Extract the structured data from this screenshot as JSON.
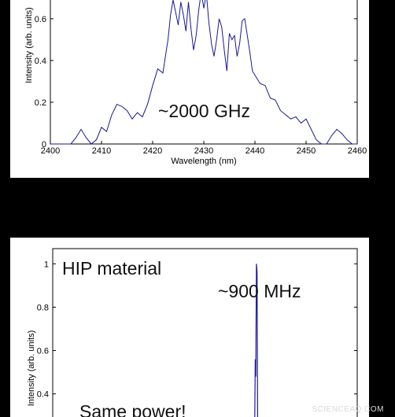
{
  "chart_data": [
    {
      "type": "line",
      "xlabel": "Wavelength (nm)",
      "ylabel": "Intensity (arb. units)",
      "xlim": [
        2400,
        2460
      ],
      "ylim": [
        0,
        0.72
      ],
      "xticks": [
        "2400",
        "2410",
        "2420",
        "2430",
        "2440",
        "2450",
        "2460"
      ],
      "yticks": [
        "0",
        "0.2",
        "0.4",
        "0.6"
      ],
      "annotation": "~2000 GHz",
      "series": [
        {
          "color": "#1a1a8c",
          "x": [
            2400,
            2404,
            2405,
            2406,
            2407,
            2408,
            2409,
            2410,
            2411,
            2412,
            2413,
            2414,
            2415,
            2416,
            2417,
            2418,
            2419,
            2420,
            2421,
            2422,
            2423,
            2423.5,
            2424,
            2424.5,
            2425,
            2425.5,
            2426,
            2426.5,
            2427,
            2427.5,
            2428,
            2428.5,
            2429,
            2429.5,
            2430,
            2430.5,
            2431,
            2431.5,
            2432,
            2432.5,
            2433,
            2433.5,
            2434,
            2434.5,
            2435,
            2435.5,
            2436,
            2436.5,
            2437,
            2437.5,
            2438,
            2438.5,
            2439,
            2439.5,
            2440,
            2441,
            2442,
            2443,
            2444,
            2445,
            2446,
            2447,
            2448,
            2449,
            2450,
            2451,
            2452,
            2453,
            2454,
            2455,
            2456,
            2457,
            2458,
            2459,
            2460
          ],
          "y": [
            0,
            0,
            0.03,
            0.07,
            0.03,
            0,
            0.02,
            0.08,
            0.06,
            0.14,
            0.19,
            0.18,
            0.16,
            0.12,
            0.15,
            0.13,
            0.19,
            0.28,
            0.36,
            0.34,
            0.5,
            0.62,
            0.69,
            0.63,
            0.57,
            0.68,
            0.62,
            0.54,
            0.68,
            0.55,
            0.45,
            0.52,
            0.64,
            0.73,
            0.65,
            0.72,
            0.58,
            0.48,
            0.42,
            0.5,
            0.6,
            0.56,
            0.45,
            0.35,
            0.53,
            0.5,
            0.52,
            0.42,
            0.48,
            0.59,
            0.6,
            0.52,
            0.44,
            0.35,
            0.33,
            0.29,
            0.28,
            0.22,
            0.21,
            0.16,
            0.14,
            0.12,
            0.13,
            0.1,
            0.12,
            0.07,
            0.02,
            0,
            0,
            0.04,
            0.07,
            0.05,
            0.02,
            0,
            0
          ]
        }
      ]
    },
    {
      "type": "line",
      "ylabel": "Intensity (arb. units)",
      "ylim": [
        0.25,
        1.07
      ],
      "yticks": [
        "0.4",
        "0.6",
        "0.8",
        "1"
      ],
      "xlim": [
        0,
        100
      ],
      "title": "HIP material",
      "annotation": "~900 MHz",
      "annotation2": "Same power!",
      "series": [
        {
          "color": "#1a1a8c",
          "x": [
            0,
            66.0,
            66.3,
            66.5,
            66.7,
            66.9,
            67.1,
            67.3,
            67.5,
            100
          ],
          "y": [
            0.2,
            0.2,
            0.2,
            0.56,
            0.48,
            1.0,
            0.96,
            0.2,
            0.2,
            0.2
          ]
        }
      ]
    }
  ],
  "watermark": "SCIENCEAQ.COM"
}
